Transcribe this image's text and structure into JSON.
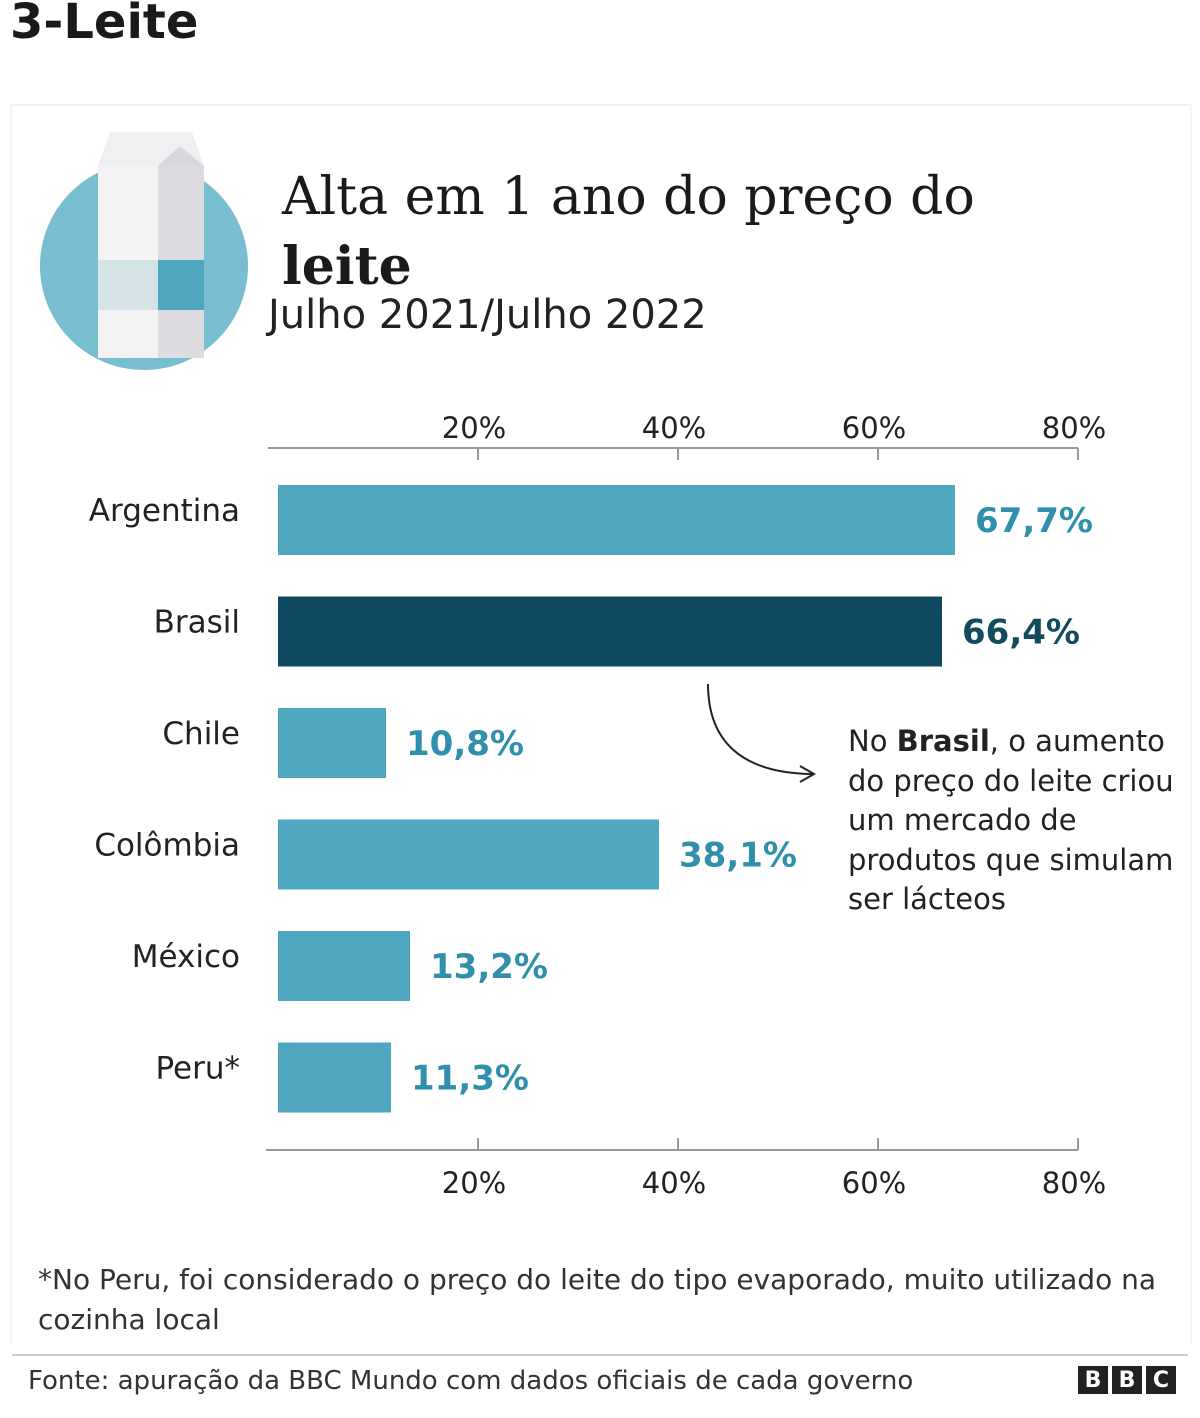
{
  "page": {
    "section_heading": "3-Leite"
  },
  "chart_data": {
    "type": "bar",
    "orientation": "horizontal",
    "title_prefix": "Alta em 1 ano do preço do ",
    "title_bold": "leite",
    "subtitle": "Julho 2021/Julho 2022",
    "categories": [
      "Argentina",
      "Brasil",
      "Chile",
      "Colômbia",
      "México",
      "Peru*"
    ],
    "values": [
      67.7,
      66.4,
      10.8,
      38.1,
      13.2,
      11.3
    ],
    "value_labels": [
      "67,7%",
      "66,4%",
      "10,8%",
      "38,1%",
      "13,2%",
      "11,3%"
    ],
    "highlight": "Brasil",
    "xlim": [
      0,
      80
    ],
    "ticks": [
      20,
      40,
      60,
      80
    ],
    "tick_labels": [
      "20%",
      "40%",
      "60%",
      "80%"
    ],
    "colors": {
      "default_bar": "#4fa7bf",
      "highlight_bar": "#0f4a60",
      "default_label": "#2f8fad",
      "highlight_label": "#124a5e",
      "icon_circle": "#78bdd0",
      "icon_accent": "#4fa7bf"
    },
    "grid": false,
    "legend": "none"
  },
  "annotation": {
    "prefix": "No ",
    "bold": "Brasil",
    "suffix": ", o aumento do preço do leite criou um mercado de produtos que simulam ser lácteos"
  },
  "footnote": "*No Peru, foi considerado o preço do leite do tipo evaporado, muito utilizado na cozinha local",
  "source": "Fonte: apuração da BBC Mundo com dados oficiais de cada governo",
  "logo": {
    "letters": [
      "B",
      "B",
      "C"
    ]
  },
  "icons": {
    "illustration": "milk-carton-icon",
    "pointer": "curved-arrow-icon"
  }
}
